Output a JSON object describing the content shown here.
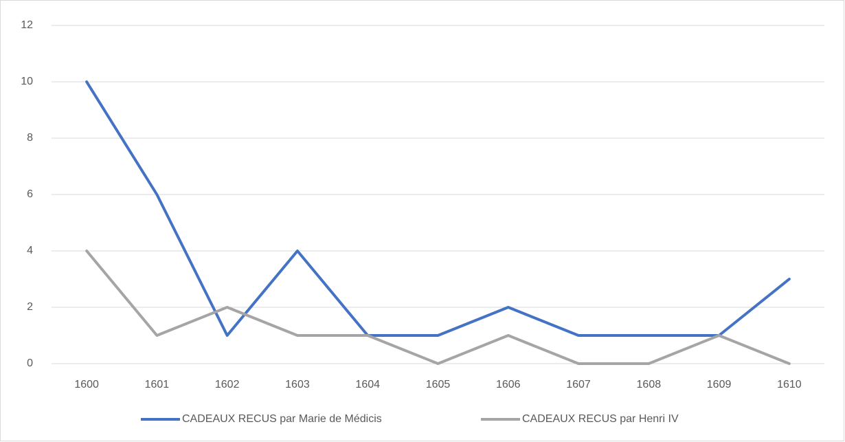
{
  "chart_data": {
    "type": "line",
    "categories": [
      "1600",
      "1601",
      "1602",
      "1603",
      "1604",
      "1605",
      "1606",
      "1607",
      "1608",
      "1609",
      "1610"
    ],
    "series": [
      {
        "name": "CADEAUX RECUS par Marie de Médicis",
        "color": "#4472c4",
        "values": [
          10,
          6,
          1,
          4,
          1,
          1,
          2,
          1,
          1,
          1,
          3
        ]
      },
      {
        "name": "CADEAUX RECUS par Henri IV",
        "color": "#a5a5a5",
        "values": [
          4,
          1,
          2,
          1,
          1,
          0,
          1,
          0,
          0,
          1,
          0
        ]
      }
    ],
    "ylim": [
      0,
      12
    ],
    "yticks": [
      0,
      2,
      4,
      6,
      8,
      10,
      12
    ],
    "grid": true,
    "legend": "bottom"
  }
}
